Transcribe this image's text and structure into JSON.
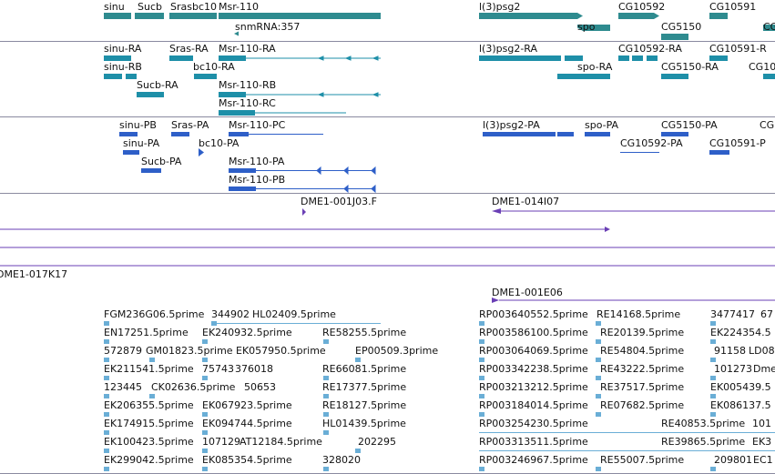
{
  "colors": {
    "gene": "#2e8b8f",
    "gene_light": "#35a3a6",
    "transcript": "#1e8fa8",
    "protein": "#2e5fc8",
    "clone": "#6a3fb5",
    "est": "#6aaed6",
    "track_border": "#8a8aa0"
  },
  "genes": {
    "labels": [
      "sinu",
      "Sucb",
      "Srasbc10",
      "Msr-110",
      "snmRNA:357",
      "l(3)psg2",
      "spo",
      "CG10592",
      "CG5150",
      "CG10591",
      "CG10"
    ]
  },
  "transcripts": {
    "labels": [
      "sinu-RA",
      "Sras-RA",
      "Msr-110-RA",
      "sinu-RB",
      "bc10-RA",
      "Sucb-RA",
      "Msr-110-RB",
      "Msr-110-RC",
      "l(3)psg2-RA",
      "spo-RA",
      "CG10592-RA",
      "CG5150-RA",
      "CG10591-R",
      "CG10"
    ]
  },
  "proteins": {
    "labels": [
      "sinu-PB",
      "Sras-PA",
      "Msr-110-PC",
      "sinu-PA",
      "bc10-PA",
      "Sucb-PA",
      "Msr-110-PA",
      "Msr-110-PB",
      "l(3)psg2-PA",
      "spo-PA",
      "CG5150-PA",
      "CG10592-PA",
      "CG10591-P",
      "CG"
    ]
  },
  "clones": {
    "labels": [
      "DME1-001J03.F",
      "DME1-014I07",
      "DME1-017K17",
      "DME1-001E06"
    ]
  },
  "ests": {
    "labels": [
      "FGM236G06.5prime",
      "344902",
      "HL02409.5prime",
      "RP003640552.5prime",
      "RE14168.5prime",
      "3477417",
      "67",
      "EN17251.5prime",
      "EK240932.5prime",
      "RE58255.5prime",
      "RP003586100.5prime",
      "RE20139.5prime",
      "EK224354.5",
      "572879",
      "GM01823.5prime",
      "EK057950.5prime",
      "EP00509.3prime",
      "RP003064069.5prime",
      "RE54804.5prime",
      "91158",
      "LD08",
      "EK211541.5prime",
      "75743",
      "376018",
      "RE66081.5prime",
      "RP003342238.5prime",
      "RE43222.5prime",
      "101273",
      "Dme",
      "123445",
      "CK02636.5prime",
      "50653",
      "RE17377.5prime",
      "RP003213212.5prime",
      "RE37517.5prime",
      "EK005439.5",
      "EK206355.5prime",
      "EK067923.5prime",
      "RE18127.5prime",
      "RP003184014.5prime",
      "RE07682.5prime",
      "EK086137.5",
      "EK174915.5prime",
      "EK094744.5prime",
      "HL01439.5prime",
      "RP003254230.5prime",
      "RE40853.5prime",
      "101",
      "EK100423.5prime",
      "107129",
      "AT12184.5prime",
      "202295",
      "RP003313511.5prime",
      "RE39865.5prime",
      "EK3",
      "EK299042.5prime",
      "EK085354.5prime",
      "328020",
      "RP003246967.5prime",
      "RE55007.5prime",
      "209801",
      "EC1"
    ]
  }
}
